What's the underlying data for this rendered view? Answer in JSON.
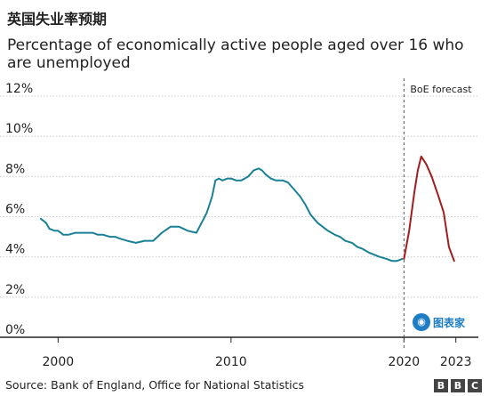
{
  "header": {
    "title": "英国失业率预期",
    "subtitle": "Percentage of economically active people aged over 16 who are unemployed"
  },
  "footer": {
    "source": "Source: Bank of England, Office for National Statistics",
    "logo_letters": [
      "B",
      "B",
      "C"
    ]
  },
  "watermark": {
    "text": "图表家"
  },
  "colors": {
    "actual": "#1a8096",
    "forecast": "#a01e1e",
    "grid": "#cccccc",
    "axis": "#222222",
    "divider": "#555555"
  },
  "chart_data": {
    "type": "line",
    "title": "英国失业率预期",
    "subtitle": "Percentage of economically active people aged over 16 who are unemployed",
    "xlabel": "",
    "ylabel": "",
    "xlim": [
      1998.8,
      2024.3
    ],
    "ylim": [
      0,
      12
    ],
    "x_ticks": [
      2000,
      2010,
      2020,
      2023
    ],
    "y_ticks": [
      0,
      2,
      4,
      6,
      8,
      10,
      12
    ],
    "y_tick_labels": [
      "0%",
      "2%",
      "4%",
      "6%",
      "8%",
      "10%",
      "12%"
    ],
    "grid": true,
    "annotations": [
      {
        "x": 2020.0,
        "text": "BoE forecast"
      }
    ],
    "series": [
      {
        "kind": "actual",
        "x": [
          1999.0,
          1999.3,
          1999.5,
          1999.8,
          2000.0,
          2000.3,
          2000.6,
          2001.0,
          2001.3,
          2001.6,
          2002.0,
          2002.3,
          2002.6,
          2003.0,
          2003.3,
          2003.6,
          2004.0,
          2004.5,
          2005.0,
          2005.5,
          2006.0,
          2006.5,
          2007.0,
          2007.5,
          2008.0,
          2008.3,
          2008.6,
          2008.9,
          2009.1,
          2009.3,
          2009.5,
          2009.8,
          2010.0,
          2010.3,
          2010.6,
          2011.0,
          2011.3,
          2011.6,
          2011.8,
          2012.0,
          2012.3,
          2012.6,
          2013.0,
          2013.3,
          2013.6,
          2014.0,
          2014.3,
          2014.6,
          2015.0,
          2015.3,
          2015.6,
          2016.0,
          2016.3,
          2016.6,
          2017.0,
          2017.3,
          2017.6,
          2018.0,
          2018.3,
          2018.6,
          2019.0,
          2019.3,
          2019.6,
          2019.9
        ],
        "y": [
          5.9,
          5.7,
          5.4,
          5.3,
          5.3,
          5.1,
          5.1,
          5.2,
          5.2,
          5.2,
          5.2,
          5.1,
          5.1,
          5.0,
          5.0,
          4.9,
          4.8,
          4.7,
          4.8,
          4.8,
          5.2,
          5.5,
          5.5,
          5.3,
          5.2,
          5.7,
          6.2,
          7.0,
          7.8,
          7.9,
          7.8,
          7.9,
          7.9,
          7.8,
          7.8,
          8.0,
          8.3,
          8.4,
          8.3,
          8.1,
          7.9,
          7.8,
          7.8,
          7.7,
          7.4,
          7.0,
          6.6,
          6.1,
          5.7,
          5.5,
          5.3,
          5.1,
          5.0,
          4.8,
          4.7,
          4.5,
          4.4,
          4.2,
          4.1,
          4.0,
          3.9,
          3.8,
          3.8,
          3.9
        ]
      },
      {
        "kind": "forecast",
        "x": [
          2020.0,
          2020.3,
          2020.6,
          2020.8,
          2021.0,
          2021.3,
          2021.6,
          2022.0,
          2022.3,
          2022.6,
          2022.9
        ],
        "y": [
          3.9,
          5.3,
          7.2,
          8.3,
          9.0,
          8.6,
          8.0,
          7.0,
          6.2,
          4.5,
          3.8
        ]
      }
    ]
  }
}
